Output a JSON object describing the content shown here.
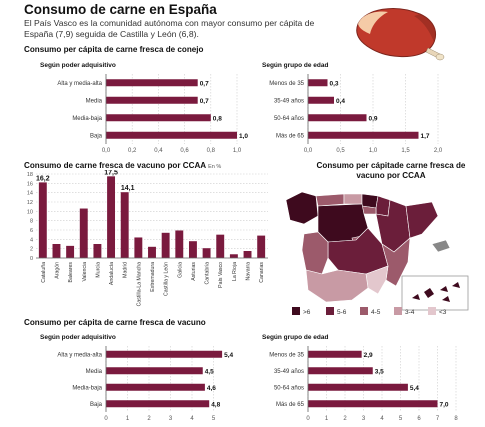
{
  "header": {
    "title": "Consumo de carne en España",
    "subtitle": "El País Vasco es la comunidad autónoma con mayor consumo per cápita de España (7,9) seguida de Castilla y León (6,8)."
  },
  "sections": {
    "conejo": "Consumo per cápita de carne fresca de conejo",
    "vacuno_ccaa": "Consumo de carne fresca de vacuno por CCAA",
    "vacuno_ccaa_unit": "En %",
    "mapa": "Consumo per cápitade carne fresca de vacuno por CCAA",
    "vacuno": "Consumo per cápita de carne fresca de vacuno"
  },
  "colors": {
    "bar": "#7a1a3e",
    "grid": "#cccccc",
    "map_gt6": "#3e0a1e",
    "map_5_6": "#6b1e3a",
    "map_4_5": "#9c5a6b",
    "map_3_4": "#c89aa4",
    "map_lt3": "#e3c7cd",
    "map_other": "#888888"
  },
  "chart_data": [
    {
      "id": "conejo-adquisitivo",
      "type": "bar",
      "orientation": "horizontal",
      "title": "Según poder adquisitivo",
      "categories": [
        "Alta y media-alta",
        "Media",
        "Media-baja",
        "Baja"
      ],
      "values": [
        0.7,
        0.7,
        0.8,
        1.0
      ],
      "value_labels": [
        "0,7",
        "0,7",
        "0,8",
        "1,0"
      ],
      "xlim": [
        0,
        1
      ],
      "ticks": [
        0,
        0.2,
        0.4,
        0.6,
        0.8,
        1.0
      ],
      "tick_labels": [
        "0,0",
        "0,2",
        "0,4",
        "0,6",
        "0,8",
        "1,0"
      ]
    },
    {
      "id": "conejo-edad",
      "type": "bar",
      "orientation": "horizontal",
      "title": "Según grupo de edad",
      "categories": [
        "Menos de 35",
        "35-49 años",
        "50-64 años",
        "Más de 65"
      ],
      "values": [
        0.3,
        0.4,
        0.9,
        1.7
      ],
      "value_labels": [
        "0,3",
        "0,4",
        "0,9",
        "1,7"
      ],
      "xlim": [
        0,
        2
      ],
      "ticks": [
        0,
        0.5,
        1.0,
        1.5,
        2.0
      ],
      "tick_labels": [
        "0,0",
        "0,5",
        "1,0",
        "1,5",
        "2,0"
      ]
    },
    {
      "id": "vacuno-ccaa",
      "type": "bar",
      "orientation": "vertical",
      "categories": [
        "Cataluña",
        "Aragón",
        "Baleares",
        "Valencia",
        "Murcia",
        "Andalucía",
        "Madrid",
        "Castilla-La Mancha",
        "Extremadura",
        "Castilla y León",
        "Galicia",
        "Asturias",
        "Cantabria",
        "País Vasco",
        "La Rioja",
        "Navarra",
        "Canarias"
      ],
      "values": [
        16.2,
        3.0,
        2.6,
        10.6,
        3.0,
        17.5,
        14.1,
        4.4,
        2.4,
        5.4,
        5.9,
        3.6,
        2.1,
        5.0,
        0.8,
        1.5,
        4.8
      ],
      "labeled": {
        "0": "16,2",
        "5": "17,5",
        "6": "14,1"
      },
      "ylim": [
        0,
        18
      ],
      "ticks": [
        0,
        2,
        4,
        6,
        8,
        10,
        12,
        14,
        16,
        18
      ]
    },
    {
      "id": "vacuno-adquisitivo",
      "type": "bar",
      "orientation": "horizontal",
      "title": "Según poder adquisitivo",
      "categories": [
        "Alta y media-alta",
        "Media",
        "Media-baja",
        "Baja"
      ],
      "values": [
        5.4,
        4.5,
        4.6,
        4.8
      ],
      "value_labels": [
        "5,4",
        "4,5",
        "4,6",
        "4,8"
      ],
      "xlim": [
        0,
        6
      ],
      "ticks": [
        0,
        1,
        2,
        3,
        4,
        5
      ],
      "tick_labels": [
        "0",
        "1",
        "2",
        "3",
        "4",
        "5"
      ]
    },
    {
      "id": "vacuno-edad",
      "type": "bar",
      "orientation": "horizontal",
      "title": "Según grupo de edad",
      "categories": [
        "Menos de 35",
        "35-49 años",
        "50-64 años",
        "Más de 65"
      ],
      "values": [
        2.9,
        3.5,
        5.4,
        7.0
      ],
      "value_labels": [
        "2,9",
        "3,5",
        "5,4",
        "7,0"
      ],
      "xlim": [
        0,
        8
      ],
      "ticks": [
        0,
        1,
        2,
        3,
        4,
        5,
        6,
        7,
        8
      ],
      "tick_labels": [
        "0",
        "1",
        "2",
        "3",
        "4",
        "5",
        "6",
        "7",
        "8"
      ]
    }
  ],
  "map_legend": [
    {
      "label": ">6",
      "color": "#3e0a1e"
    },
    {
      "label": "5-6",
      "color": "#6b1e3a"
    },
    {
      "label": "4-5",
      "color": "#9c5a6b"
    },
    {
      "label": "3-4",
      "color": "#c89aa4"
    },
    {
      "label": "<3",
      "color": "#e3c7cd"
    }
  ]
}
